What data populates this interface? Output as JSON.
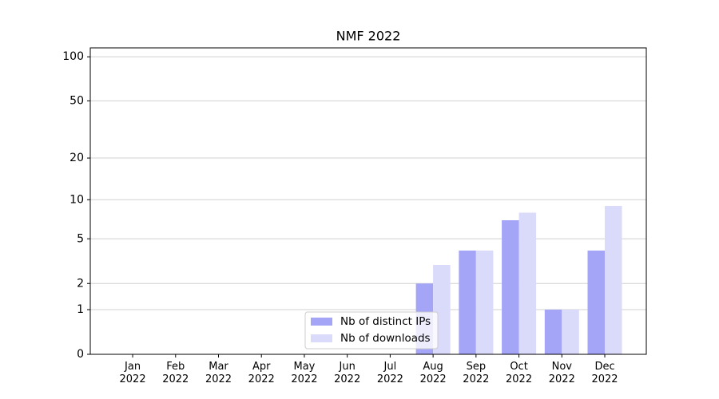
{
  "chart_data": {
    "type": "bar",
    "title": "NMF 2022",
    "categories": [
      "Jan\n2022",
      "Feb\n2022",
      "Mar\n2022",
      "Apr\n2022",
      "May\n2022",
      "Jun\n2022",
      "Jul\n2022",
      "Aug\n2022",
      "Sep\n2022",
      "Oct\n2022",
      "Nov\n2022",
      "Dec\n2022"
    ],
    "series": [
      {
        "name": "Nb of distinct IPs",
        "color": "#a5a5f7",
        "values": [
          0,
          0,
          0,
          0,
          0,
          0,
          0,
          2,
          4,
          7,
          1,
          4
        ]
      },
      {
        "name": "Nb of downloads",
        "color": "#dadafb",
        "values": [
          0,
          0,
          0,
          0,
          0,
          0,
          0,
          3,
          4,
          8,
          1,
          9
        ]
      }
    ],
    "yscale": "log1p",
    "ylim": [
      0,
      115
    ],
    "yticks": [
      0,
      1,
      2,
      5,
      10,
      20,
      50,
      100
    ],
    "grid": true,
    "legend": "lower center"
  }
}
